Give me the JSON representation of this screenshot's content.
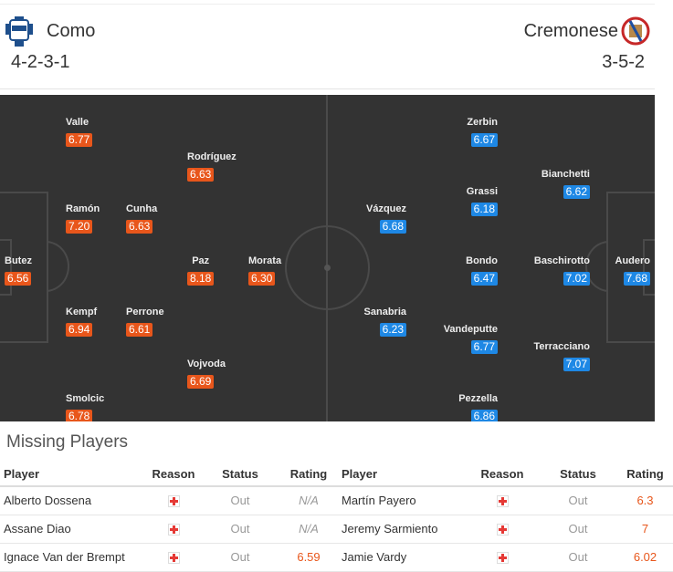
{
  "home": {
    "name": "Como",
    "formation": "4-2-3-1",
    "badge_color": "#1e4f8c",
    "players": [
      {
        "name": "Valle",
        "rating": "6.77"
      },
      {
        "name": "Rodríguez",
        "rating": "6.63"
      },
      {
        "name": "Ramón",
        "rating": "7.20"
      },
      {
        "name": "Cunha",
        "rating": "6.63"
      },
      {
        "name": "Butez",
        "rating": "6.56"
      },
      {
        "name": "Paz",
        "rating": "8.18"
      },
      {
        "name": "Morata",
        "rating": "6.30"
      },
      {
        "name": "Kempf",
        "rating": "6.94"
      },
      {
        "name": "Perrone",
        "rating": "6.61"
      },
      {
        "name": "Vojvoda",
        "rating": "6.69"
      },
      {
        "name": "Smolcic",
        "rating": "6.78"
      }
    ]
  },
  "away": {
    "name": "Cremonese",
    "formation": "3-5-2",
    "badge_color": "#c62828",
    "players": [
      {
        "name": "Zerbin",
        "rating": "6.67"
      },
      {
        "name": "Bianchetti",
        "rating": "6.62"
      },
      {
        "name": "Grassi",
        "rating": "6.18"
      },
      {
        "name": "Vázquez",
        "rating": "6.68"
      },
      {
        "name": "Bondo",
        "rating": "6.47"
      },
      {
        "name": "Baschirotto",
        "rating": "7.02"
      },
      {
        "name": "Audero",
        "rating": "7.68"
      },
      {
        "name": "Sanabria",
        "rating": "6.23"
      },
      {
        "name": "Vandeputte",
        "rating": "6.77"
      },
      {
        "name": "Terracciano",
        "rating": "7.07"
      },
      {
        "name": "Pezzella",
        "rating": "6.86"
      }
    ]
  },
  "colors": {
    "home_rating": "#e8561b",
    "away_rating": "#1e88e5",
    "pitch": "#333333"
  },
  "missing": {
    "title": "Missing Players",
    "headers": [
      "Player",
      "Reason",
      "Status",
      "Rating",
      "Player",
      "Reason",
      "Status",
      "Rating"
    ],
    "rows": [
      {
        "home_player": "Alberto Dossena",
        "home_reason": "injury-icon",
        "home_status": "Out",
        "home_rating": "N/A",
        "away_player": "Martín Payero",
        "away_reason": "injury-icon",
        "away_status": "Out",
        "away_rating": "6.3"
      },
      {
        "home_player": "Assane Diao",
        "home_reason": "injury-icon",
        "home_status": "Out",
        "home_rating": "N/A",
        "away_player": "Jeremy Sarmiento",
        "away_reason": "injury-icon",
        "away_status": "Out",
        "away_rating": "7"
      },
      {
        "home_player": "Ignace Van der Brempt",
        "home_reason": "injury-icon",
        "home_status": "Out",
        "home_rating": "6.59",
        "away_player": "Jamie Vardy",
        "away_reason": "injury-icon",
        "away_status": "Out",
        "away_rating": "6.02"
      }
    ]
  }
}
